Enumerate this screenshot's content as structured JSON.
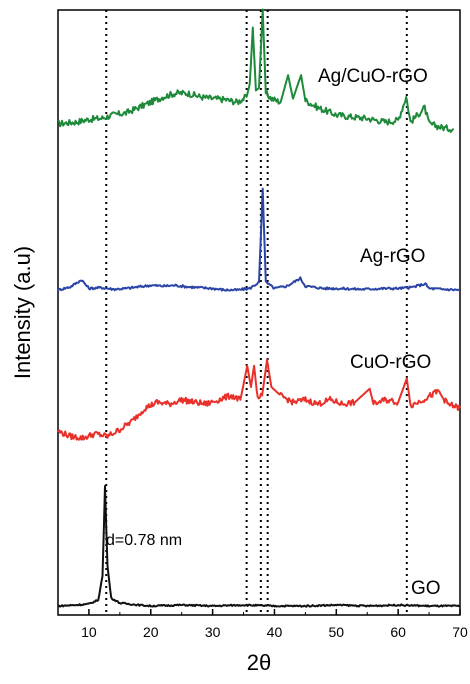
{
  "chart_data": {
    "type": "line",
    "xlabel": "2θ",
    "ylabel": "Intensity (a.u)",
    "xlim": [
      5,
      70
    ],
    "xticks": [
      10,
      20,
      30,
      40,
      50,
      60,
      70
    ],
    "yticks_visible": false,
    "grid": false,
    "legend": "none (series labelled directly on plot)",
    "reference_lines_x": [
      12.8,
      35.5,
      37.8,
      38.9,
      61.4
    ],
    "reference_line_style": "dotted",
    "annotations": [
      {
        "text": "d=0.78 nm",
        "x": 13.0
      }
    ],
    "series": [
      {
        "name": "Ag/CuO-rGO",
        "color": "#1e8a3a",
        "baseline": 0.0,
        "points": [
          [
            5,
            0.18
          ],
          [
            8,
            0.2
          ],
          [
            10,
            0.23
          ],
          [
            12,
            0.24
          ],
          [
            14,
            0.28
          ],
          [
            16,
            0.3
          ],
          [
            18,
            0.36
          ],
          [
            20,
            0.42
          ],
          [
            22,
            0.48
          ],
          [
            24,
            0.52
          ],
          [
            26,
            0.52
          ],
          [
            28,
            0.48
          ],
          [
            30,
            0.46
          ],
          [
            32,
            0.45
          ],
          [
            34,
            0.42
          ],
          [
            35.5,
            0.48
          ],
          [
            36,
            0.62
          ],
          [
            36.5,
            1.25
          ],
          [
            37,
            0.55
          ],
          [
            37.5,
            0.58
          ],
          [
            38.1,
            1.45
          ],
          [
            38.6,
            0.52
          ],
          [
            39.5,
            0.46
          ],
          [
            41,
            0.42
          ],
          [
            42.2,
            0.72
          ],
          [
            43,
            0.46
          ],
          [
            44.3,
            0.72
          ],
          [
            45,
            0.44
          ],
          [
            47,
            0.36
          ],
          [
            50,
            0.28
          ],
          [
            52,
            0.26
          ],
          [
            55,
            0.24
          ],
          [
            58,
            0.2
          ],
          [
            60,
            0.22
          ],
          [
            61.3,
            0.48
          ],
          [
            62,
            0.2
          ],
          [
            64.3,
            0.36
          ],
          [
            65,
            0.18
          ],
          [
            67,
            0.14
          ],
          [
            69,
            0.12
          ]
        ]
      },
      {
        "name": "Ag-rGO",
        "color": "#2b45a6",
        "baseline": 0.0,
        "points": [
          [
            5,
            0.0
          ],
          [
            7,
            0.04
          ],
          [
            8.8,
            0.13
          ],
          [
            10,
            0.02
          ],
          [
            12,
            0.03
          ],
          [
            14,
            0.01
          ],
          [
            16,
            0.02
          ],
          [
            18,
            0.04
          ],
          [
            20,
            0.06
          ],
          [
            22,
            0.05
          ],
          [
            24,
            0.06
          ],
          [
            26,
            0.04
          ],
          [
            28,
            0.03
          ],
          [
            30,
            0.02
          ],
          [
            32,
            0.0
          ],
          [
            34,
            0.0
          ],
          [
            36,
            0.02
          ],
          [
            37.5,
            0.1
          ],
          [
            38.1,
            1.3
          ],
          [
            38.6,
            0.1
          ],
          [
            40,
            0.02
          ],
          [
            42,
            0.05
          ],
          [
            44.2,
            0.15
          ],
          [
            45,
            0.05
          ],
          [
            48,
            0.02
          ],
          [
            50,
            0.02
          ],
          [
            54,
            0.01
          ],
          [
            58,
            0.02
          ],
          [
            60,
            0.02
          ],
          [
            62,
            0.03
          ],
          [
            64.4,
            0.08
          ],
          [
            65,
            0.02
          ],
          [
            67,
            0.01
          ],
          [
            70,
            0.0
          ]
        ]
      },
      {
        "name": "CuO-rGO",
        "color": "#e8312a",
        "baseline": 0.0,
        "points": [
          [
            5,
            0.08
          ],
          [
            7,
            0.02
          ],
          [
            9,
            0.0
          ],
          [
            11,
            0.05
          ],
          [
            13,
            0.02
          ],
          [
            15,
            0.1
          ],
          [
            17,
            0.2
          ],
          [
            19,
            0.35
          ],
          [
            21,
            0.42
          ],
          [
            23,
            0.4
          ],
          [
            25,
            0.45
          ],
          [
            27,
            0.42
          ],
          [
            29,
            0.4
          ],
          [
            31,
            0.45
          ],
          [
            33,
            0.5
          ],
          [
            34.5,
            0.45
          ],
          [
            35.6,
            0.85
          ],
          [
            36.2,
            0.6
          ],
          [
            36.7,
            0.85
          ],
          [
            37.3,
            0.45
          ],
          [
            38,
            0.5
          ],
          [
            38.8,
            0.92
          ],
          [
            39.5,
            0.6
          ],
          [
            41,
            0.5
          ],
          [
            43,
            0.42
          ],
          [
            45,
            0.45
          ],
          [
            47,
            0.4
          ],
          [
            49,
            0.45
          ],
          [
            51,
            0.4
          ],
          [
            53,
            0.42
          ],
          [
            55.4,
            0.58
          ],
          [
            56,
            0.4
          ],
          [
            58,
            0.45
          ],
          [
            60,
            0.42
          ],
          [
            61.4,
            0.7
          ],
          [
            62,
            0.38
          ],
          [
            64,
            0.45
          ],
          [
            66.5,
            0.55
          ],
          [
            68,
            0.4
          ],
          [
            70,
            0.35
          ]
        ]
      },
      {
        "name": "GO",
        "color": "#111111",
        "baseline": 0.0,
        "points": [
          [
            5,
            0.0
          ],
          [
            8,
            0.01
          ],
          [
            10,
            0.02
          ],
          [
            11.5,
            0.06
          ],
          [
            12.2,
            0.3
          ],
          [
            12.6,
            1.2
          ],
          [
            13.0,
            0.4
          ],
          [
            13.6,
            0.08
          ],
          [
            15,
            0.03
          ],
          [
            18,
            0.01
          ],
          [
            20,
            0.0
          ],
          [
            25,
            0.01
          ],
          [
            30,
            0.0
          ],
          [
            35,
            0.01
          ],
          [
            40,
            0.0
          ],
          [
            45,
            0.0
          ],
          [
            50,
            0.01
          ],
          [
            55,
            0.0
          ],
          [
            60,
            0.01
          ],
          [
            65,
            0.0
          ],
          [
            70,
            0.0
          ]
        ]
      }
    ]
  }
}
